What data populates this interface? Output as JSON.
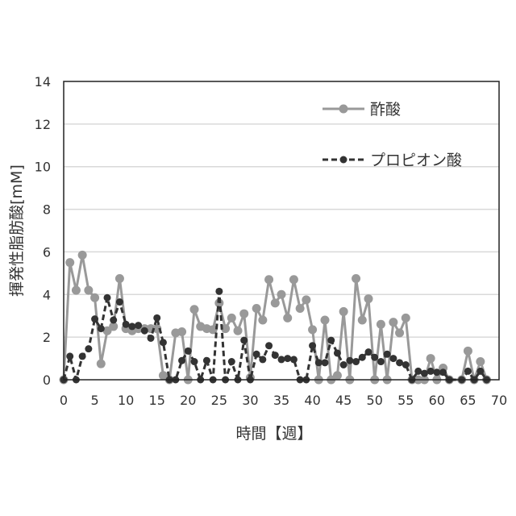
{
  "chart_data": {
    "type": "line",
    "title": "",
    "xlabel": "時間【週】",
    "ylabel": "揮発性脂肪酸[mM]",
    "xlim": [
      0,
      70
    ],
    "ylim": [
      0,
      14
    ],
    "xticks": [
      0,
      5,
      10,
      15,
      20,
      25,
      30,
      35,
      40,
      45,
      50,
      55,
      60,
      65,
      70
    ],
    "yticks": [
      0,
      2,
      4,
      6,
      8,
      10,
      12,
      14
    ],
    "grid": true,
    "legend_position": "top-right",
    "series": [
      {
        "name": "酢酸",
        "style": "solid",
        "color": "#999999",
        "x": [
          0,
          1,
          2,
          3,
          4,
          5,
          6,
          7,
          8,
          9,
          10,
          11,
          12,
          13,
          14,
          15,
          16,
          17,
          18,
          19,
          20,
          21,
          22,
          23,
          24,
          25,
          26,
          27,
          28,
          29,
          30,
          31,
          32,
          33,
          34,
          35,
          36,
          37,
          38,
          39,
          40,
          41,
          42,
          43,
          44,
          45,
          46,
          47,
          48,
          49,
          50,
          51,
          52,
          53,
          54,
          55,
          56,
          57,
          58,
          59,
          60,
          61,
          62,
          64,
          65,
          66,
          67,
          68
        ],
        "y": [
          0,
          5.5,
          4.2,
          5.85,
          4.2,
          3.85,
          0.75,
          2.3,
          2.5,
          4.75,
          2.4,
          2.3,
          2.4,
          2.4,
          2.4,
          2.4,
          0.2,
          0,
          2.2,
          2.25,
          0,
          3.3,
          2.5,
          2.4,
          2.35,
          3.6,
          2.4,
          2.9,
          2.3,
          3.1,
          0.1,
          3.35,
          2.8,
          4.7,
          3.6,
          4.0,
          2.9,
          4.7,
          3.35,
          3.75,
          2.35,
          0,
          2.8,
          0,
          0.2,
          3.2,
          0,
          4.75,
          2.8,
          3.8,
          0,
          2.6,
          0,
          2.7,
          2.2,
          2.9,
          0,
          0,
          0,
          1.0,
          0,
          0.55,
          0,
          0,
          1.35,
          0,
          0.85,
          0
        ]
      },
      {
        "name": "プロピオン酸",
        "style": "dashed",
        "color": "#333333",
        "x": [
          0,
          1,
          2,
          3,
          4,
          5,
          6,
          7,
          8,
          9,
          10,
          11,
          12,
          13,
          14,
          15,
          16,
          17,
          18,
          19,
          20,
          21,
          22,
          23,
          24,
          25,
          26,
          27,
          28,
          29,
          30,
          31,
          32,
          33,
          34,
          35,
          36,
          37,
          38,
          39,
          40,
          41,
          42,
          43,
          44,
          45,
          46,
          47,
          48,
          49,
          50,
          51,
          52,
          53,
          54,
          55,
          56,
          57,
          58,
          59,
          60,
          61,
          62,
          64,
          65,
          66,
          67,
          68
        ],
        "y": [
          0,
          1.1,
          0,
          1.1,
          1.45,
          2.85,
          2.4,
          3.85,
          2.8,
          3.65,
          2.6,
          2.5,
          2.55,
          2.3,
          1.95,
          2.9,
          1.75,
          0,
          0,
          0.9,
          1.35,
          0.85,
          0,
          0.9,
          0,
          4.15,
          0,
          0.85,
          0,
          1.85,
          0,
          1.2,
          0.95,
          1.6,
          1.15,
          0.95,
          1.0,
          0.95,
          0,
          0,
          1.6,
          0.8,
          0.8,
          1.85,
          1.25,
          0.7,
          0.9,
          0.85,
          1.05,
          1.3,
          1.05,
          0.85,
          1.2,
          1.0,
          0.8,
          0.7,
          0,
          0.4,
          0.3,
          0.4,
          0.35,
          0.35,
          0,
          0,
          0.4,
          0,
          0.4,
          0
        ]
      }
    ]
  }
}
